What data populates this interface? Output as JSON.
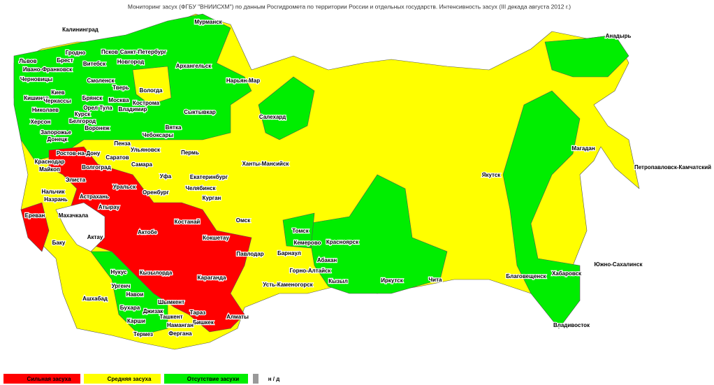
{
  "title": "Мониторинг засух (ФГБУ \"ВНИИСХМ\") по данным Росгидромета по территории России и отдельных государств. Интенсивность засух (III декада августа 2012 г.)",
  "legend": [
    {
      "name": "Сильная засуха",
      "color": "#ff0000"
    },
    {
      "name": "Средняя засуха",
      "color": "#ffff00"
    },
    {
      "name": "Отсутствие засухи",
      "color": "#00ee00"
    },
    {
      "name": "н / д",
      "color": "#999999"
    }
  ],
  "cities": [
    "Мурманск",
    "Калининград",
    "Санкт-Петербург",
    "Псков",
    "Анадырь",
    "Гродно",
    "Брест",
    "Львов",
    "Новгород",
    "Витебск",
    "Архангельск",
    "Ивано-Франковск",
    "Черновицы",
    "Смоленск",
    "Нарьян-Мар",
    "Киев",
    "Тверь",
    "Вологда",
    "Кишинев",
    "Черкассы",
    "Брянск",
    "Москва",
    "Николаев",
    "Орел Тула",
    "Кострома",
    "Владимир",
    "Сыктывкар",
    "Салехард",
    "Курск",
    "Херсон",
    "Белгород",
    "Воронеж",
    "Вятка",
    "Чебоксары",
    "Запорожье",
    "Донецк",
    "Пенза",
    "Магадан",
    "Ростов-на-Дону",
    "Ульяновск",
    "Пермь",
    "Саратов",
    "Краснодар",
    "Самара",
    "Ханты-Мансийск",
    "Петропавловск-Камчатский",
    "Майкоп",
    "Волгоград",
    "Уфа",
    "Екатеринбург",
    "Якутск",
    "Элиста",
    "Нальчик",
    "Уральск",
    "Челябинск",
    "Оренбург",
    "Назрань",
    "Астрахань",
    "Курган",
    "Атырау",
    "Ереван",
    "Махачкала",
    "Костанай",
    "Омск",
    "Актобе",
    "Томск",
    "Актау",
    "Баку",
    "Кокшетау",
    "Кемерово",
    "Красноярск",
    "Павлодар",
    "Барнаул",
    "Абакан",
    "Южно-Сахалинск",
    "Нукус",
    "Кызылорда",
    "Горно-Алтайск",
    "Благовещенск",
    "Хабаровск",
    "Караганда",
    "Ургенч",
    "Усть-Каменогорск",
    "Кызыл",
    "Иркутск",
    "Чита",
    "Навои",
    "Ашхабад",
    "Шымкент",
    "Бухара",
    "Джизак",
    "Тараз",
    "Алматы",
    "Ташкент",
    "Бишкек",
    "Карши",
    "Наманган",
    "Владивосток",
    "Фергана",
    "Термез"
  ]
}
